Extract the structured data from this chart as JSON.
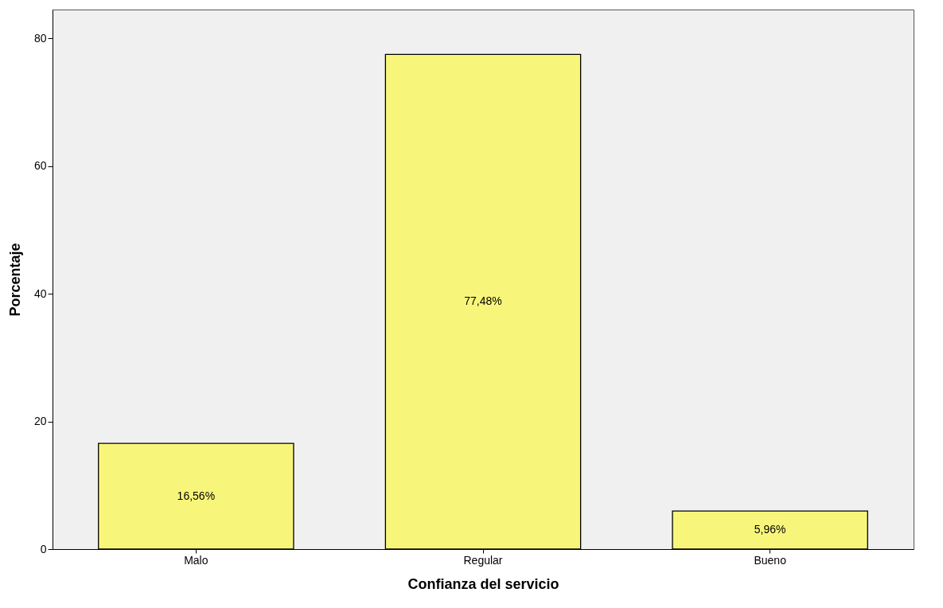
{
  "chart_data": {
    "type": "bar",
    "xlabel": "Confianza del servicio",
    "ylabel": "Porcentaje",
    "categories": [
      "Malo",
      "Regular",
      "Bueno"
    ],
    "values": [
      16.56,
      77.48,
      5.96
    ],
    "value_labels": [
      "16,56%",
      "77,48%",
      "5,96%"
    ],
    "color": "#f8f67a",
    "ylim": [
      0,
      84.5
    ],
    "yticks": [
      0,
      20,
      40,
      60,
      80
    ],
    "grid": false
  }
}
